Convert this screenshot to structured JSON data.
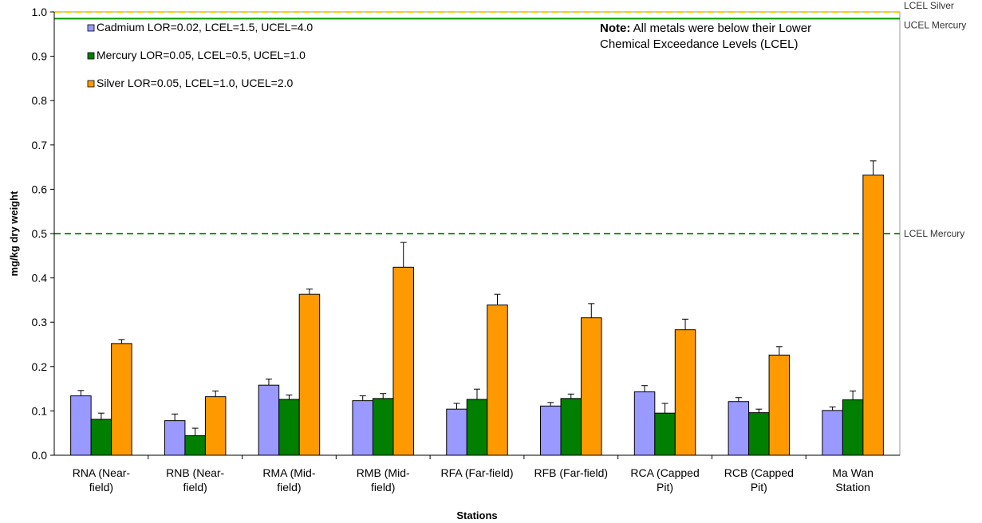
{
  "chart_data": {
    "type": "bar",
    "xlabel": "Stations",
    "ylabel": "mg/kg dry weight",
    "ylim": [
      0,
      1.0
    ],
    "yticks": [
      "0.0",
      "0.1",
      "0.2",
      "0.3",
      "0.4",
      "0.5",
      "0.6",
      "0.7",
      "0.8",
      "0.9",
      "1.0"
    ],
    "grid": false,
    "legend_position": "top-left",
    "categories": [
      [
        "RNA (Near-",
        "field)"
      ],
      [
        "RNB (Near-",
        "field)"
      ],
      [
        "RMA (Mid-",
        "field)"
      ],
      [
        "RMB (Mid-",
        "field)"
      ],
      [
        "RFA (Far-field)"
      ],
      [
        "RFB (Far-field)"
      ],
      [
        "RCA (Capped",
        "Pit)"
      ],
      [
        "RCB (Capped",
        "Pit)"
      ],
      [
        "Ma Wan",
        "Station"
      ]
    ],
    "series": [
      {
        "name": "Cadmium LOR=0.02, LCEL=1.5, UCEL=4.0",
        "color": "#9999ff",
        "values": [
          0.134,
          0.078,
          0.158,
          0.123,
          0.104,
          0.111,
          0.143,
          0.121,
          0.101
        ],
        "errors": [
          0.012,
          0.015,
          0.014,
          0.011,
          0.013,
          0.008,
          0.014,
          0.009,
          0.008
        ]
      },
      {
        "name": "Mercury LOR=0.05, LCEL=0.5, UCEL=1.0",
        "color": "#007f00",
        "values": [
          0.081,
          0.044,
          0.126,
          0.128,
          0.126,
          0.128,
          0.095,
          0.096,
          0.125
        ],
        "errors": [
          0.014,
          0.017,
          0.01,
          0.011,
          0.023,
          0.01,
          0.022,
          0.008,
          0.02
        ]
      },
      {
        "name": "Silver LOR=0.05, LCEL=1.0, UCEL=2.0",
        "color": "#ff9900",
        "values": [
          0.252,
          0.132,
          0.363,
          0.424,
          0.339,
          0.31,
          0.283,
          0.226,
          0.632
        ],
        "errors": [
          0.009,
          0.013,
          0.012,
          0.056,
          0.024,
          0.032,
          0.024,
          0.019,
          0.032
        ]
      }
    ],
    "reference_lines": [
      {
        "label": "LCEL Silver",
        "value": 1.0,
        "color": "#ffcc00",
        "style": "dashed"
      },
      {
        "label": "UCEL Mercury",
        "value": 0.985,
        "color": "#009900",
        "style": "solid"
      },
      {
        "label": "LCEL Mercury",
        "value": 0.5,
        "color": "#009900",
        "style": "dashed"
      }
    ],
    "note": {
      "bold": "Note:",
      "line1": " All metals were below their Lower",
      "line2": "Chemical Exceedance Levels (LCEL)"
    }
  }
}
